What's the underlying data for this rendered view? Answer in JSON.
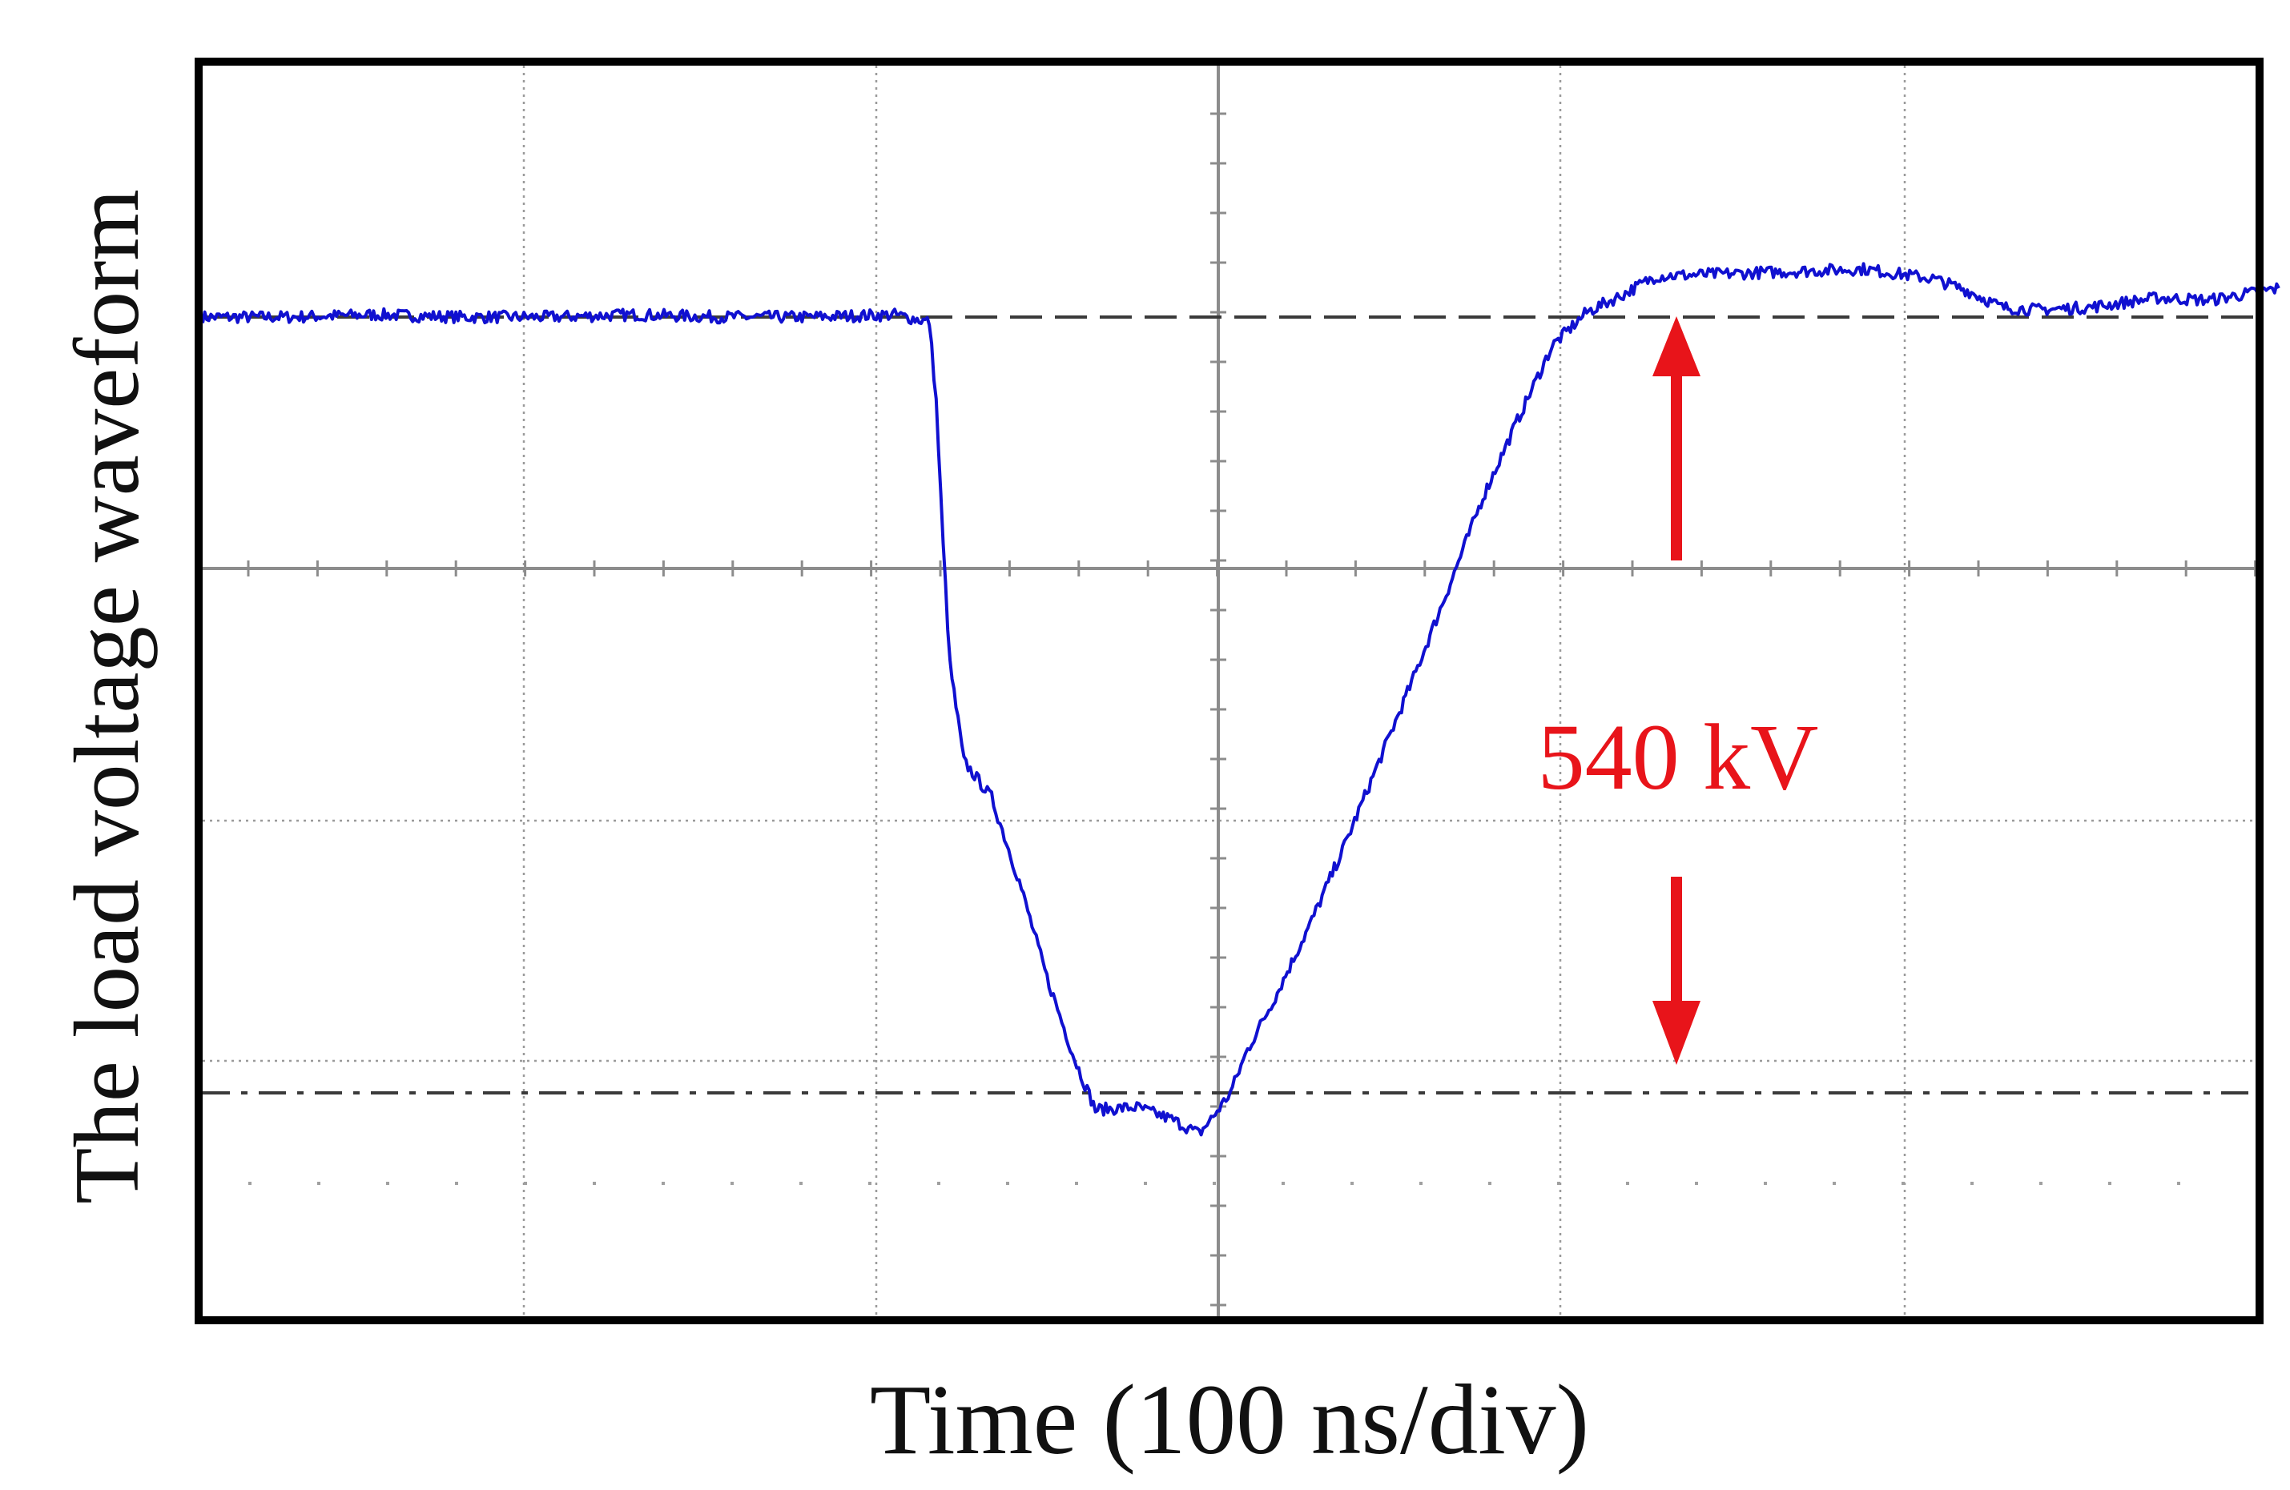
{
  "chart_data": {
    "type": "line",
    "title": "",
    "xlabel": "Time (100 ns/div)",
    "ylabel": "The load voltage waveform",
    "x_divisions": 6,
    "y_divisions": 5.3,
    "xlim": [
      0,
      600
    ],
    "x_unit": "ns",
    "y_unit": "div",
    "grid": true,
    "series": [
      {
        "name": "load voltage",
        "color": "#1010d0",
        "points": [
          [
            0,
            3.95
          ],
          [
            25,
            3.95
          ],
          [
            50,
            3.96
          ],
          [
            75,
            3.95
          ],
          [
            100,
            3.95
          ],
          [
            125,
            3.96
          ],
          [
            150,
            3.95
          ],
          [
            175,
            3.95
          ],
          [
            200,
            3.96
          ],
          [
            210,
            3.93
          ],
          [
            212,
            3.6
          ],
          [
            214,
            3.0
          ],
          [
            216,
            2.5
          ],
          [
            220,
            2.1
          ],
          [
            228,
            1.95
          ],
          [
            236,
            1.6
          ],
          [
            244,
            1.2
          ],
          [
            252,
            0.86
          ],
          [
            258,
            0.65
          ],
          [
            270,
            0.66
          ],
          [
            280,
            0.61
          ],
          [
            288,
            0.55
          ],
          [
            292,
            0.62
          ],
          [
            297,
            0.72
          ],
          [
            302,
            0.9
          ],
          [
            310,
            1.12
          ],
          [
            320,
            1.42
          ],
          [
            330,
            1.75
          ],
          [
            340,
            2.1
          ],
          [
            350,
            2.45
          ],
          [
            360,
            2.82
          ],
          [
            370,
            3.2
          ],
          [
            380,
            3.52
          ],
          [
            390,
            3.83
          ],
          [
            400,
            3.97
          ],
          [
            410,
            4.04
          ],
          [
            420,
            4.12
          ],
          [
            440,
            4.13
          ],
          [
            460,
            4.14
          ],
          [
            480,
            4.15
          ],
          [
            500,
            4.11
          ],
          [
            510,
            4.06
          ],
          [
            520,
            3.99
          ],
          [
            530,
            3.98
          ],
          [
            545,
            3.99
          ],
          [
            565,
            4.03
          ],
          [
            580,
            4.02
          ],
          [
            600,
            4.07
          ]
        ]
      }
    ],
    "reference_lines": [
      {
        "name": "upper level",
        "style": "dashed",
        "y": 3.95
      },
      {
        "name": "lower level",
        "style": "dash-dot",
        "y": 0.72
      }
    ],
    "annotations": [
      {
        "text": "540 kV",
        "color": "#e8141a"
      }
    ]
  }
}
